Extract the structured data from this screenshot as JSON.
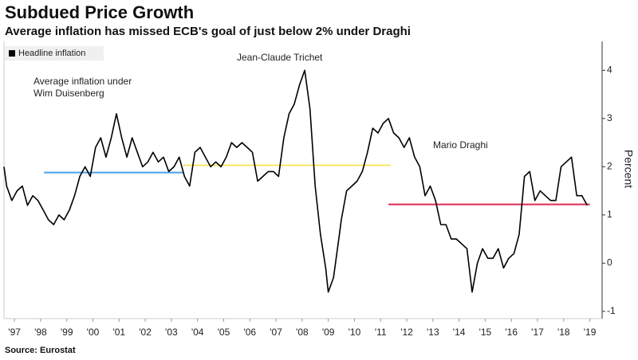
{
  "chart_data": {
    "type": "line",
    "title": "Subdued Price Growth",
    "subtitle": "Average inflation has missed ECB's goal of just below 2% under Draghi",
    "source": "Source: Eurostat",
    "y_label": "Percent",
    "xlim": [
      1997.1,
      2019.97
    ],
    "ylim": [
      -1.15,
      4.6
    ],
    "yticks": [
      -1,
      0,
      1,
      2,
      3,
      4
    ],
    "xticks": [
      {
        "value": 1997.5,
        "label": "'97"
      },
      {
        "value": 1998.5,
        "label": "'98"
      },
      {
        "value": 1999.5,
        "label": "'99"
      },
      {
        "value": 2000.5,
        "label": "'00"
      },
      {
        "value": 2001.5,
        "label": "'01"
      },
      {
        "value": 2002.5,
        "label": "'02"
      },
      {
        "value": 2003.5,
        "label": "'03"
      },
      {
        "value": 2004.5,
        "label": "'04"
      },
      {
        "value": 2005.5,
        "label": "'05"
      },
      {
        "value": 2006.5,
        "label": "'06"
      },
      {
        "value": 2007.5,
        "label": "'07"
      },
      {
        "value": 2008.5,
        "label": "'08"
      },
      {
        "value": 2009.5,
        "label": "'09"
      },
      {
        "value": 2010.5,
        "label": "'10"
      },
      {
        "value": 2011.5,
        "label": "'11"
      },
      {
        "value": 2012.5,
        "label": "'12"
      },
      {
        "value": 2013.5,
        "label": "'13"
      },
      {
        "value": 2014.5,
        "label": "'14"
      },
      {
        "value": 2015.5,
        "label": "'15"
      },
      {
        "value": 2016.5,
        "label": "'16"
      },
      {
        "value": 2017.5,
        "label": "'17"
      },
      {
        "value": 2018.5,
        "label": "'18"
      },
      {
        "value": 2019.5,
        "label": "'19"
      }
    ],
    "legend": "top-left",
    "series": [
      {
        "name": "Headline inflation",
        "color": "#000000",
        "x": [
          1997.1,
          1997.2,
          1997.4,
          1997.6,
          1997.8,
          1998.0,
          1998.2,
          1998.4,
          1998.6,
          1998.8,
          1999.0,
          1999.2,
          1999.4,
          1999.6,
          1999.8,
          2000.0,
          2000.2,
          2000.4,
          2000.6,
          2000.8,
          2001.0,
          2001.2,
          2001.4,
          2001.6,
          2001.8,
          2002.0,
          2002.2,
          2002.4,
          2002.6,
          2002.8,
          2003.0,
          2003.2,
          2003.4,
          2003.6,
          2003.8,
          2004.0,
          2004.2,
          2004.4,
          2004.6,
          2004.8,
          2005.0,
          2005.2,
          2005.4,
          2005.6,
          2005.8,
          2006.0,
          2006.2,
          2006.4,
          2006.6,
          2006.8,
          2007.0,
          2007.2,
          2007.4,
          2007.6,
          2007.8,
          2008.0,
          2008.2,
          2008.4,
          2008.6,
          2008.8,
          2009.0,
          2009.2,
          2009.4,
          2009.5,
          2009.7,
          2009.9,
          2010.0,
          2010.2,
          2010.4,
          2010.6,
          2010.8,
          2011.0,
          2011.2,
          2011.4,
          2011.6,
          2011.8,
          2012.0,
          2012.2,
          2012.4,
          2012.6,
          2012.8,
          2013.0,
          2013.2,
          2013.4,
          2013.6,
          2013.8,
          2014.0,
          2014.2,
          2014.4,
          2014.6,
          2014.8,
          2015.0,
          2015.2,
          2015.4,
          2015.6,
          2015.8,
          2016.0,
          2016.2,
          2016.4,
          2016.6,
          2016.8,
          2017.0,
          2017.2,
          2017.4,
          2017.6,
          2017.8,
          2018.0,
          2018.2,
          2018.4,
          2018.6,
          2018.8,
          2019.0,
          2019.2,
          2019.4
        ],
        "values": [
          2.0,
          1.6,
          1.3,
          1.5,
          1.6,
          1.2,
          1.4,
          1.3,
          1.1,
          0.9,
          0.8,
          1.0,
          0.9,
          1.1,
          1.4,
          1.8,
          2.0,
          1.8,
          2.4,
          2.6,
          2.2,
          2.6,
          3.1,
          2.6,
          2.2,
          2.6,
          2.3,
          2.0,
          2.1,
          2.3,
          2.1,
          2.2,
          1.9,
          2.0,
          2.2,
          1.8,
          1.6,
          2.3,
          2.4,
          2.2,
          2.0,
          2.1,
          2.0,
          2.2,
          2.5,
          2.4,
          2.5,
          2.4,
          2.3,
          1.7,
          1.8,
          1.9,
          1.9,
          1.8,
          2.6,
          3.1,
          3.3,
          3.7,
          4.0,
          3.2,
          1.6,
          0.6,
          -0.1,
          -0.6,
          -0.3,
          0.5,
          0.9,
          1.5,
          1.6,
          1.7,
          1.9,
          2.3,
          2.8,
          2.7,
          2.9,
          3.0,
          2.7,
          2.6,
          2.4,
          2.6,
          2.2,
          2.0,
          1.4,
          1.6,
          1.3,
          0.8,
          0.8,
          0.5,
          0.5,
          0.4,
          0.3,
          -0.6,
          0.0,
          0.3,
          0.1,
          0.1,
          0.3,
          -0.1,
          0.1,
          0.2,
          0.6,
          1.8,
          1.9,
          1.3,
          1.5,
          1.4,
          1.3,
          1.3,
          2.0,
          2.1,
          2.2,
          1.4,
          1.4,
          1.2
        ]
      }
    ],
    "averages": [
      {
        "label_lines": [
          "Average inflation under",
          "Wim Duisenberg"
        ],
        "color": "#4a9fe8",
        "x": [
          1998.63,
          2003.96
        ],
        "values": [
          1.88,
          1.88
        ]
      },
      {
        "label_lines": [
          "Jean-Claude Trichet"
        ],
        "color": "#f5e663",
        "x": [
          2003.96,
          2011.9
        ],
        "values": [
          2.03,
          2.03
        ]
      },
      {
        "label_lines": [
          "Mario Draghi"
        ],
        "color": "#e0284f",
        "x": [
          2011.8,
          2019.5
        ],
        "values": [
          1.22,
          1.22
        ]
      }
    ]
  }
}
